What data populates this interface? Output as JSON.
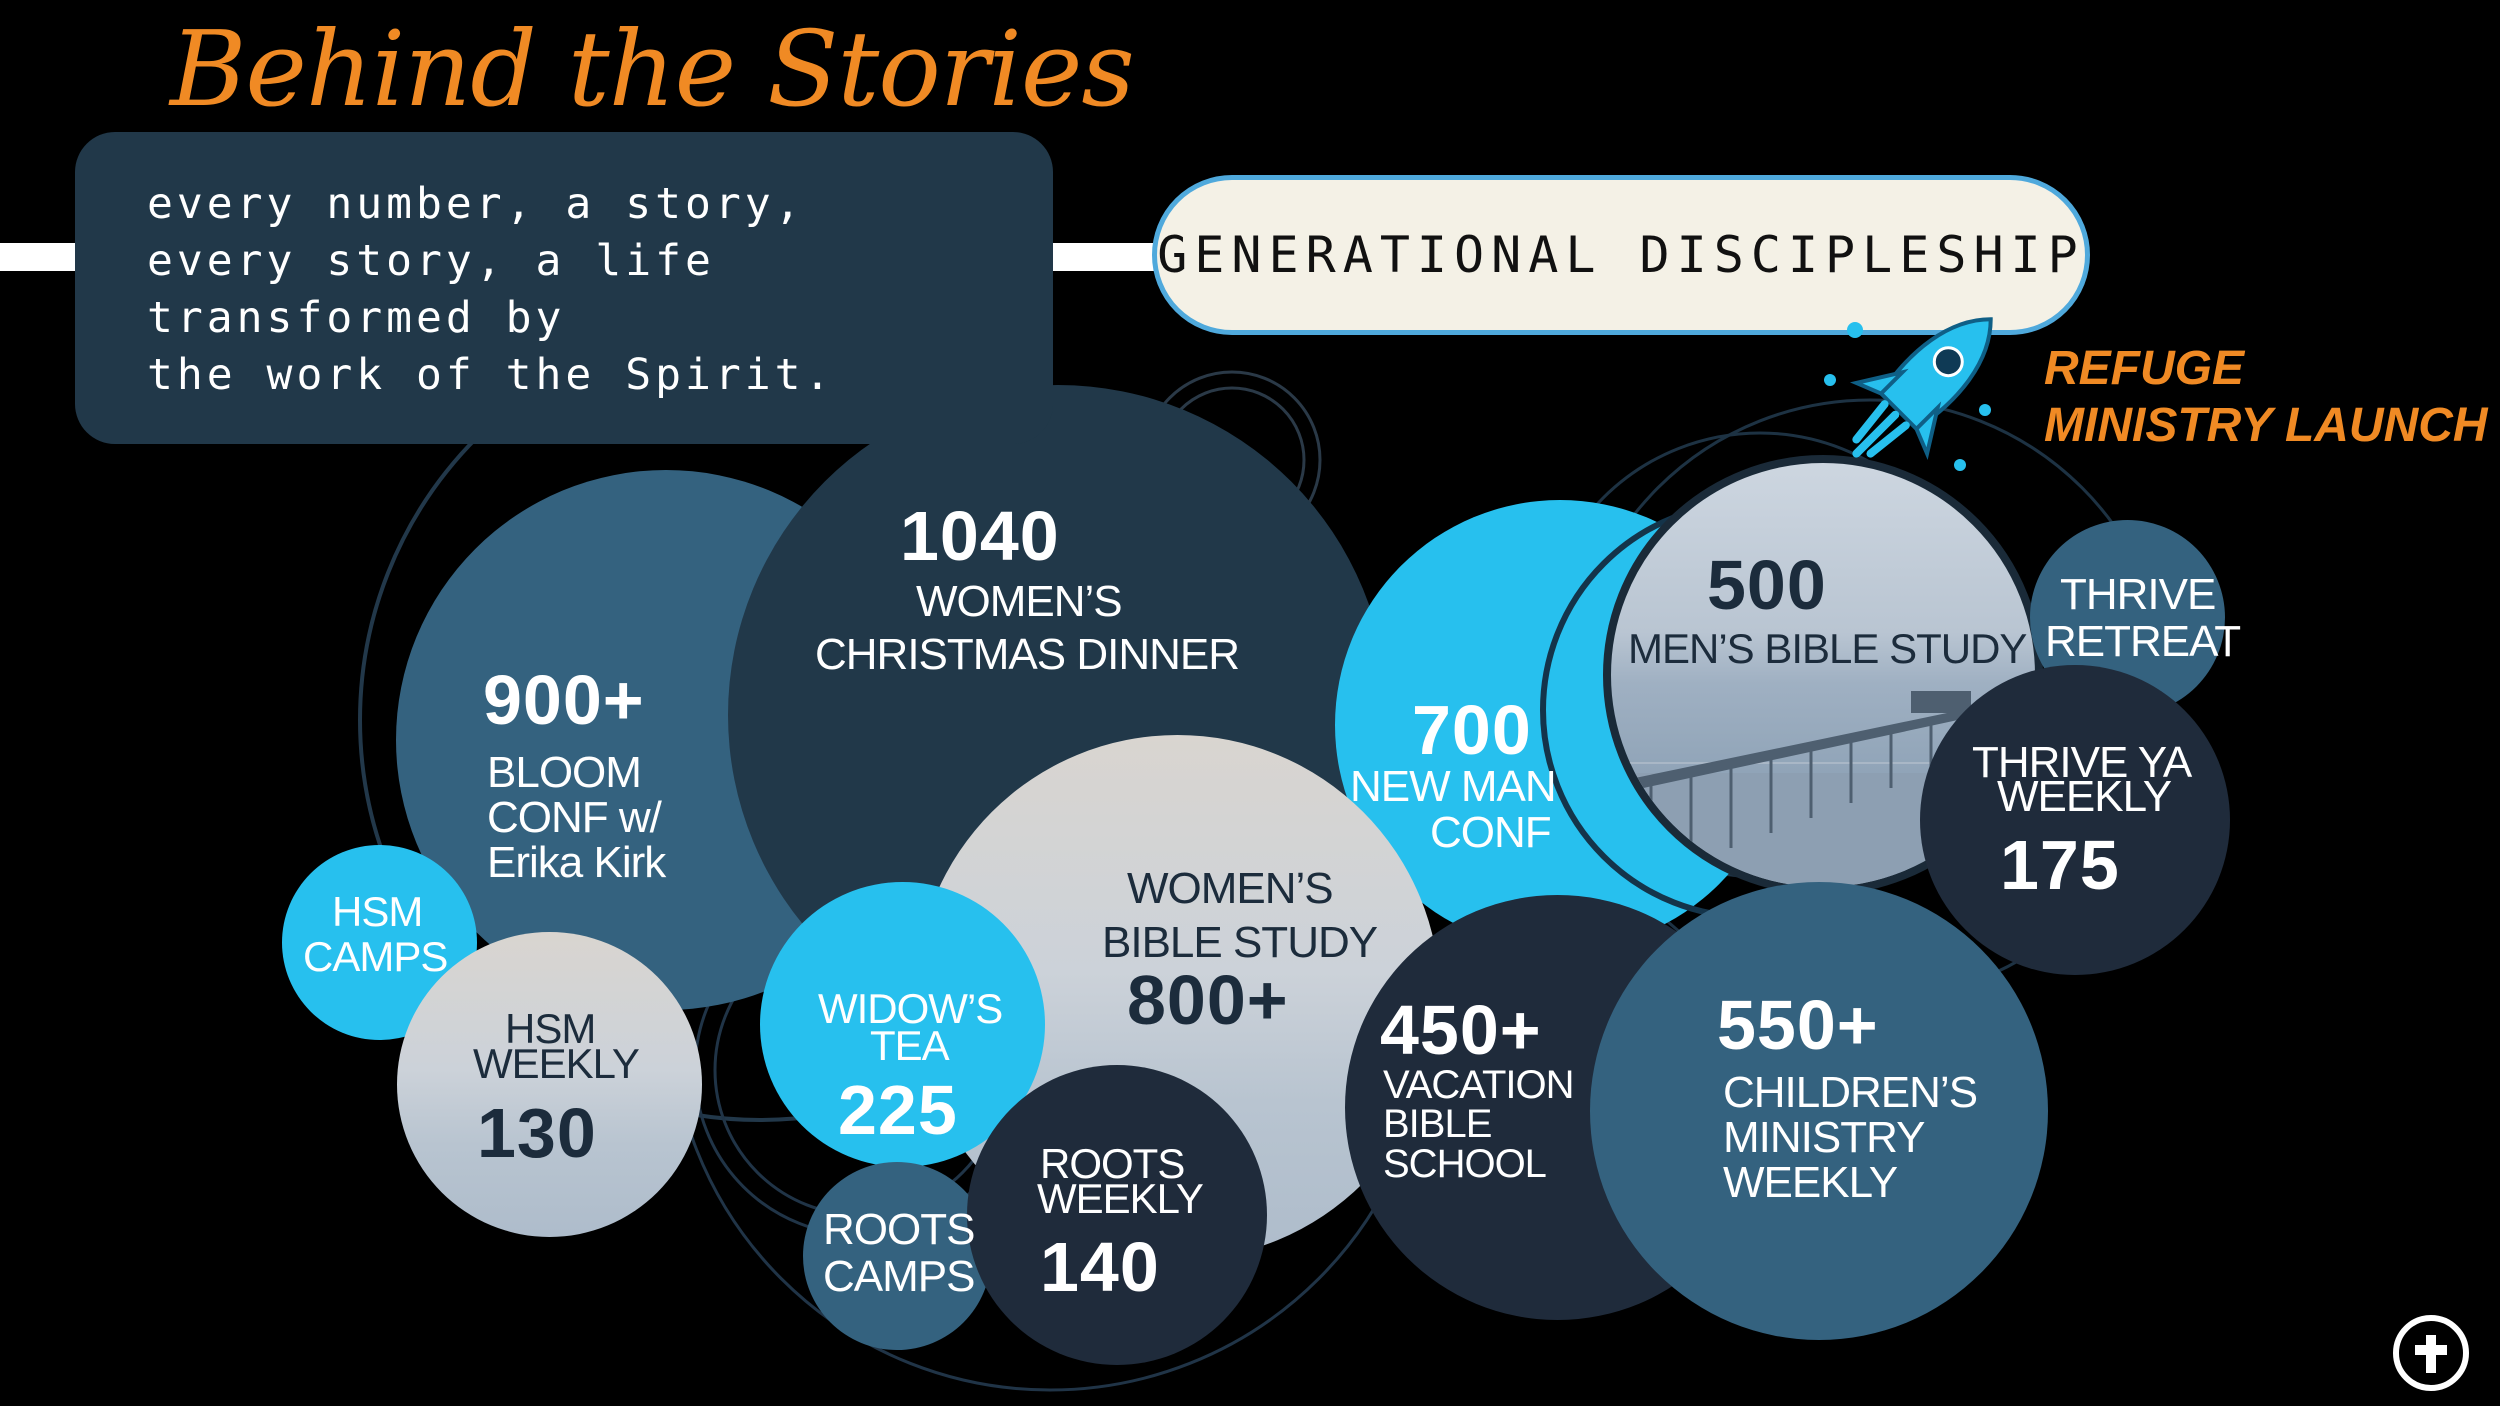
{
  "title": "Behind the Stories",
  "quote": {
    "lines": [
      "every number, a story,",
      "every story, a life",
      "transformed by",
      "the work of the Spirit."
    ]
  },
  "banner": "GENERATIONAL DISCIPLESHIP",
  "refuge": {
    "line1": "REFUGE",
    "line2": "MINISTRY LAUNCH"
  },
  "icons": {
    "rocket": "rocket-icon",
    "seal": "cross-seal-icon"
  },
  "colors": {
    "background": "#000000",
    "accent_orange": "#f08a24",
    "navy": "#213849",
    "steel": "#34627f",
    "cyan": "#27c0ee",
    "dark": "#1f2b3b",
    "pill_border": "#4fa9dc"
  },
  "stats": {
    "bloom": {
      "number": "900+",
      "label1": "BLOOM",
      "label2": "CONF w/",
      "label3": "Erika Kirk"
    },
    "christmas": {
      "number": "1040",
      "label1": "WOMEN’S",
      "label2": "CHRISTMAS DINNER"
    },
    "womens_bible": {
      "label1": "WOMEN’S",
      "label2": "BIBLE STUDY",
      "number": "800+"
    },
    "new_man": {
      "number": "700",
      "label1": "NEW MAN",
      "label2": "CONF"
    },
    "mens_bible": {
      "number": "500",
      "label": "MEN’S BIBLE STUDY"
    },
    "thrive_retreat": {
      "label1": "THRIVE",
      "label2": "RETREAT"
    },
    "thrive_ya": {
      "label1": "THRIVE YA",
      "label2": "WEEKLY",
      "number": "175"
    },
    "hsm_camps": {
      "label1": "HSM",
      "label2": "CAMPS"
    },
    "hsm_weekly": {
      "label1": "HSM",
      "label2": "WEEKLY",
      "number": "130"
    },
    "widows_tea": {
      "label1": "WIDOW’S",
      "label2": "TEA",
      "number": "225"
    },
    "roots_camps": {
      "label1": "ROOTS",
      "label2": "CAMPS"
    },
    "roots_weekly": {
      "label1": "ROOTS",
      "label2": "WEEKLY",
      "number": "140"
    },
    "vbs": {
      "number": "450+",
      "label1": "VACATION",
      "label2": "BIBLE",
      "label3": "SCHOOL"
    },
    "childrens": {
      "number": "550+",
      "label1": "CHILDREN’S",
      "label2": "MINISTRY",
      "label3": "WEEKLY"
    }
  }
}
